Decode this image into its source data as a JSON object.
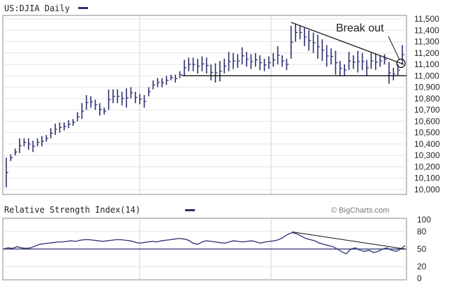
{
  "chart_data": [
    {
      "type": "ohlc",
      "title": "US:DJIA Daily",
      "legend_swatch_color": "#2b2f6e",
      "bar_color": "#2b2f6e",
      "ylim": [
        10000,
        11500
      ],
      "yticks": [
        "11,500",
        "11,400",
        "11,300",
        "11,200",
        "11,100",
        "11,000",
        "10,900",
        "10,800",
        "10,700",
        "10,600",
        "10,500",
        "10,400",
        "10,300",
        "10,200",
        "10,100",
        "10,000"
      ],
      "ytick_values": [
        11500,
        11400,
        11300,
        11200,
        11100,
        11000,
        10900,
        10800,
        10700,
        10600,
        10500,
        10400,
        10300,
        10200,
        10100,
        10000
      ],
      "grid": true,
      "bars_hl": [
        [
          10020,
          10280
        ],
        [
          10250,
          10310
        ],
        [
          10300,
          10360
        ],
        [
          10320,
          10450
        ],
        [
          10380,
          10450
        ],
        [
          10350,
          10450
        ],
        [
          10330,
          10430
        ],
        [
          10380,
          10450
        ],
        [
          10380,
          10470
        ],
        [
          10420,
          10480
        ],
        [
          10450,
          10540
        ],
        [
          10480,
          10580
        ],
        [
          10500,
          10590
        ],
        [
          10520,
          10590
        ],
        [
          10540,
          10610
        ],
        [
          10560,
          10620
        ],
        [
          10600,
          10680
        ],
        [
          10620,
          10760
        ],
        [
          10700,
          10830
        ],
        [
          10720,
          10820
        ],
        [
          10700,
          10790
        ],
        [
          10650,
          10760
        ],
        [
          10660,
          10720
        ],
        [
          10700,
          10880
        ],
        [
          10760,
          10880
        ],
        [
          10760,
          10880
        ],
        [
          10740,
          10860
        ],
        [
          10720,
          10890
        ],
        [
          10800,
          10900
        ],
        [
          10760,
          10860
        ],
        [
          10750,
          10840
        ],
        [
          10720,
          10830
        ],
        [
          10820,
          10900
        ],
        [
          10880,
          10960
        ],
        [
          10900,
          10980
        ],
        [
          10900,
          10980
        ],
        [
          10920,
          11000
        ],
        [
          10960,
          11010
        ],
        [
          10940,
          11010
        ],
        [
          10980,
          11040
        ],
        [
          11000,
          11140
        ],
        [
          11040,
          11160
        ],
        [
          11040,
          11160
        ],
        [
          11020,
          11150
        ],
        [
          11040,
          11170
        ],
        [
          11020,
          11160
        ],
        [
          10960,
          11100
        ],
        [
          10940,
          11110
        ],
        [
          10950,
          11130
        ],
        [
          11020,
          11150
        ],
        [
          11040,
          11210
        ],
        [
          11060,
          11200
        ],
        [
          11070,
          11190
        ],
        [
          11100,
          11250
        ],
        [
          11080,
          11210
        ],
        [
          11060,
          11190
        ],
        [
          11080,
          11200
        ],
        [
          11050,
          11180
        ],
        [
          11040,
          11150
        ],
        [
          11060,
          11170
        ],
        [
          11080,
          11200
        ],
        [
          11100,
          11260
        ],
        [
          11080,
          11180
        ],
        [
          11050,
          11150
        ],
        [
          11150,
          11440
        ],
        [
          11300,
          11460
        ],
        [
          11320,
          11440
        ],
        [
          11260,
          11420
        ],
        [
          11220,
          11400
        ],
        [
          11200,
          11380
        ],
        [
          11150,
          11360
        ],
        [
          11130,
          11320
        ],
        [
          11080,
          11270
        ],
        [
          11100,
          11240
        ],
        [
          11010,
          11220
        ],
        [
          11000,
          11130
        ],
        [
          11000,
          11100
        ],
        [
          11050,
          11210
        ],
        [
          11060,
          11180
        ],
        [
          11030,
          11220
        ],
        [
          11050,
          11200
        ],
        [
          11000,
          11140
        ],
        [
          11060,
          11200
        ],
        [
          11050,
          11190
        ],
        [
          11080,
          11180
        ],
        [
          11100,
          11190
        ],
        [
          10930,
          11120
        ],
        [
          10960,
          11070
        ],
        [
          11000,
          11100
        ],
        [
          11100,
          11270
        ]
      ],
      "annotations": [
        {
          "text": "Break out",
          "type": "label"
        },
        {
          "type": "trendline",
          "description": "descending resistance from peak"
        },
        {
          "type": "horizontal_line",
          "value": 11000
        },
        {
          "type": "circle",
          "value": 11110
        }
      ],
      "annotation_label": "Break out"
    },
    {
      "type": "line",
      "title": "Relative Strength Index(14)",
      "legend_swatch_color": "#2b2f6e",
      "line_color": "#2b2f6e",
      "credit": "© BigCharts.com",
      "ylim": [
        0,
        100
      ],
      "yticks": [
        "100",
        "80",
        "50",
        "20",
        "0"
      ],
      "ytick_values": [
        100,
        80,
        50,
        20,
        0
      ],
      "reference_line": 50,
      "values": [
        50,
        52,
        51,
        54,
        52,
        51,
        52,
        55,
        58,
        59,
        60,
        61,
        62,
        62,
        63,
        64,
        63,
        65,
        66,
        66,
        65,
        64,
        63,
        64,
        65,
        66,
        66,
        65,
        64,
        62,
        60,
        61,
        62,
        63,
        62,
        64,
        65,
        66,
        67,
        68,
        67,
        65,
        60,
        58,
        62,
        64,
        63,
        62,
        61,
        60,
        62,
        64,
        63,
        62,
        63,
        64,
        62,
        60,
        62,
        63,
        64,
        66,
        70,
        75,
        78,
        76,
        72,
        68,
        66,
        64,
        60,
        58,
        56,
        54,
        50,
        45,
        42,
        50,
        52,
        48,
        46,
        48,
        44,
        46,
        50,
        52,
        48,
        46,
        50,
        56
      ]
    }
  ]
}
